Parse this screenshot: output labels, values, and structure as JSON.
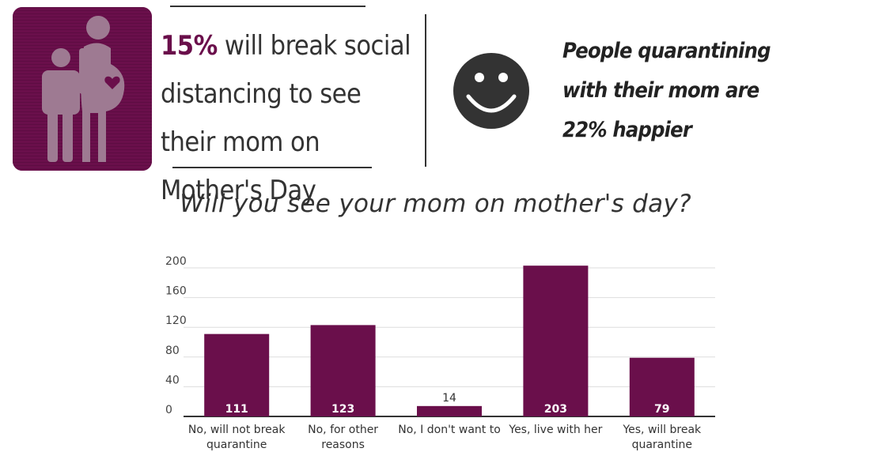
{
  "stat": {
    "percent": "15%",
    "text": " will break social distancing to see their mom on Mother's Day"
  },
  "happiness": {
    "lines": [
      "People quarantining",
      "with their mom are",
      "22% happier"
    ]
  },
  "colors": {
    "accent": "#6a0f4b",
    "text": "#333333",
    "grid": "#dddddd"
  },
  "icons": {
    "tile": "parent-child-icon",
    "face": "smiley-icon"
  },
  "chart_data": {
    "type": "bar",
    "title": "Will you see your mom on mother's day?",
    "xlabel": "",
    "ylabel": "",
    "categories": [
      [
        "No, will not break",
        "quarantine"
      ],
      [
        "No, for other",
        "reasons"
      ],
      [
        "No, I don't want to"
      ],
      [
        "Yes, live with her"
      ],
      [
        "Yes, will break",
        "quarantine"
      ]
    ],
    "values": [
      111,
      123,
      14,
      203,
      79
    ],
    "data_labels": [
      "111",
      "123",
      "14",
      "203",
      "79"
    ],
    "yticks": [
      0,
      40,
      80,
      120,
      160,
      200
    ],
    "ylim": [
      0,
      200
    ],
    "grid": true,
    "bar_color": "#6a0f4b"
  }
}
